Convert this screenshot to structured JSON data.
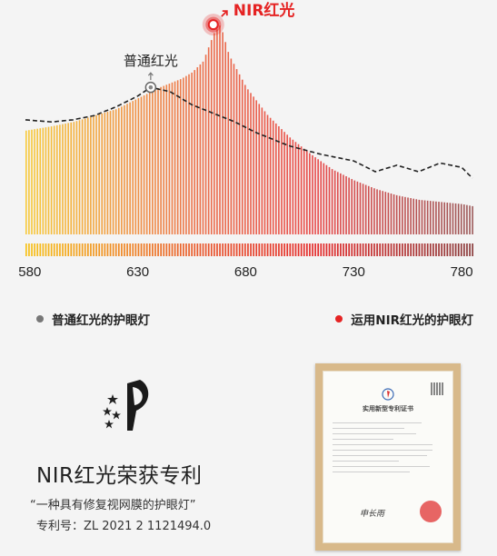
{
  "chart_data": {
    "type": "bar",
    "x_ticks": [
      580,
      630,
      680,
      730,
      780
    ],
    "x_range": [
      578,
      785
    ],
    "y_range": [
      0,
      1
    ],
    "bar_spacing_nm": 1.3,
    "annotations": [
      {
        "label": "普通红光",
        "x": 636,
        "y": 0.68
      },
      {
        "label": "NIR红光",
        "x": 665,
        "y": 0.97
      }
    ],
    "series": [
      {
        "name": "运用NIR红光的护眼灯",
        "style": "bars",
        "x": [
          578,
          590,
          600,
          610,
          620,
          630,
          640,
          650,
          655,
          660,
          665,
          668,
          672,
          680,
          690,
          700,
          710,
          720,
          730,
          740,
          750,
          760,
          770,
          780,
          785
        ],
        "values": [
          0.48,
          0.5,
          0.52,
          0.55,
          0.58,
          0.63,
          0.68,
          0.72,
          0.75,
          0.8,
          0.93,
          0.97,
          0.83,
          0.68,
          0.55,
          0.45,
          0.37,
          0.3,
          0.25,
          0.21,
          0.18,
          0.16,
          0.15,
          0.14,
          0.13
        ]
      },
      {
        "name": "普通红光的护眼灯",
        "style": "dashed-line",
        "x": [
          578,
          590,
          600,
          610,
          620,
          630,
          636,
          645,
          655,
          665,
          675,
          685,
          700,
          715,
          730,
          740,
          750,
          760,
          770,
          780,
          785
        ],
        "values": [
          0.53,
          0.52,
          0.53,
          0.55,
          0.59,
          0.64,
          0.68,
          0.66,
          0.6,
          0.56,
          0.52,
          0.47,
          0.41,
          0.37,
          0.34,
          0.29,
          0.32,
          0.29,
          0.33,
          0.31,
          0.26
        ]
      }
    ]
  },
  "legend": {
    "normal": {
      "label": "普通红光的护眼灯",
      "color": "#777777"
    },
    "nir": {
      "label": "运用NIR红光的护眼灯",
      "color": "#e52323"
    }
  },
  "colors": {
    "bar_low": "#f7c21a",
    "bar_mid": "#e9572f",
    "bar_high": "#e52c2c",
    "bar_tail": "#8c3e3e",
    "accent": "#e52323"
  },
  "patent": {
    "title": "NIR红光荣获专利",
    "name": "“一种具有修复视网膜的护眼灯”",
    "number": "专利号：ZL 2021 2 1121494.0"
  },
  "certificate": {
    "title": "实用新型专利证书"
  }
}
